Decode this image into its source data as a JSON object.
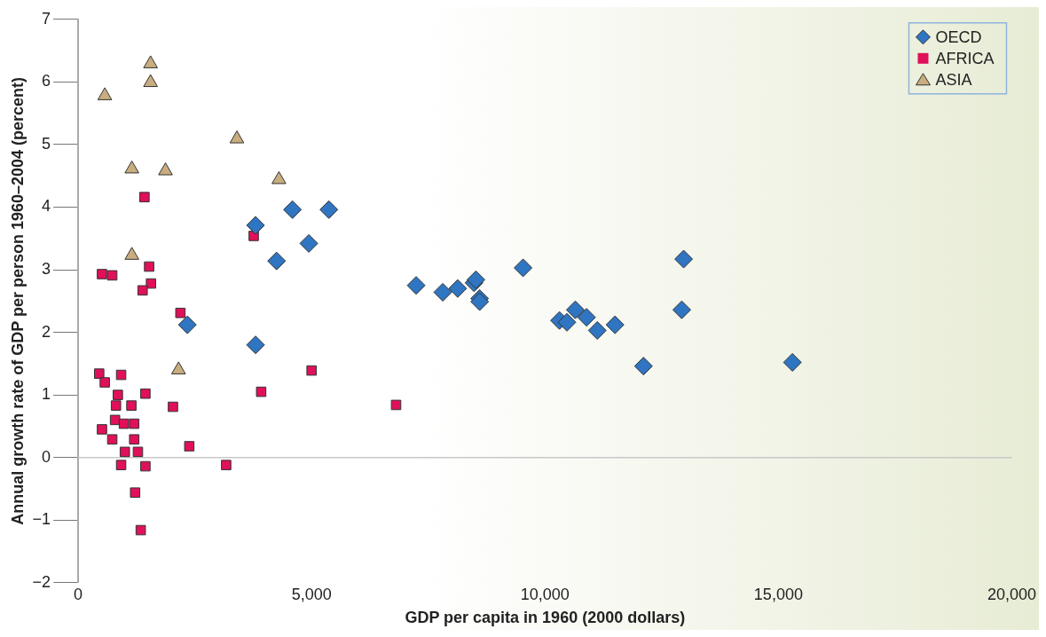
{
  "chart_data": {
    "type": "scatter",
    "xlabel": "GDP per capita in 1960 (2000 dollars)",
    "ylabel": "Annual growth rate of GDP per person 1960–2004 (percent)",
    "xlim": [
      0,
      20000
    ],
    "xticks": [
      0,
      {
        "value": 5000,
        "label": "5,000"
      },
      {
        "value": 10000,
        "label": "10,000"
      },
      {
        "value": 15000,
        "label": "15,000"
      },
      {
        "value": 20000,
        "label": "20,000"
      }
    ],
    "ylim": [
      -2,
      7
    ],
    "yticks": [
      {
        "value": -2,
        "label": "−2"
      },
      {
        "value": -1,
        "label": "−1"
      },
      0,
      1,
      2,
      3,
      4,
      5,
      6,
      7
    ],
    "grid": false,
    "legend": "top right",
    "ref_lines": [
      {
        "axis": "y",
        "value": 0,
        "color": "#c8c8c8"
      }
    ],
    "series": [
      {
        "name": "OECD",
        "color": "#2f75c2",
        "marker": "diamond",
        "x": [
          3800,
          4590,
          5370,
          4940,
          4250,
          3800,
          2340,
          7240,
          7810,
          8130,
          8480,
          8520,
          8600,
          8600,
          9530,
          10310,
          10470,
          10650,
          10890,
          11120,
          11500,
          12110,
          12930,
          12970,
          15300
        ],
        "values": [
          3.71,
          3.96,
          3.96,
          3.42,
          3.14,
          1.8,
          2.12,
          2.75,
          2.64,
          2.7,
          2.79,
          2.84,
          2.54,
          2.49,
          3.03,
          2.19,
          2.16,
          2.36,
          2.24,
          2.03,
          2.12,
          1.46,
          2.36,
          3.17,
          1.52
        ]
      },
      {
        "name": "AFRICA",
        "color": "#e0105a",
        "marker": "square",
        "x": [
          1420,
          3760,
          1520,
          510,
          730,
          1560,
          1380,
          2190,
          450,
          570,
          920,
          5000,
          3920,
          850,
          1440,
          810,
          1140,
          2030,
          790,
          980,
          1200,
          510,
          730,
          1200,
          2380,
          1000,
          1280,
          920,
          1440,
          3170,
          1220,
          1340,
          6810
        ],
        "values": [
          4.16,
          3.54,
          3.05,
          2.93,
          2.91,
          2.78,
          2.67,
          2.31,
          1.34,
          1.2,
          1.32,
          1.39,
          1.05,
          1.0,
          1.02,
          0.83,
          0.83,
          0.81,
          0.6,
          0.54,
          0.54,
          0.45,
          0.29,
          0.29,
          0.18,
          0.09,
          0.09,
          -0.12,
          -0.14,
          -0.12,
          -0.56,
          -1.16,
          0.84
        ]
      },
      {
        "name": "ASIA",
        "color": "#c9ad7f",
        "marker": "triangle",
        "x": [
          570,
          1550,
          1550,
          1150,
          1870,
          3400,
          4300,
          1150,
          2150
        ],
        "values": [
          5.78,
          6.29,
          5.99,
          4.61,
          4.58,
          5.09,
          4.44,
          3.23,
          1.4
        ]
      }
    ]
  }
}
